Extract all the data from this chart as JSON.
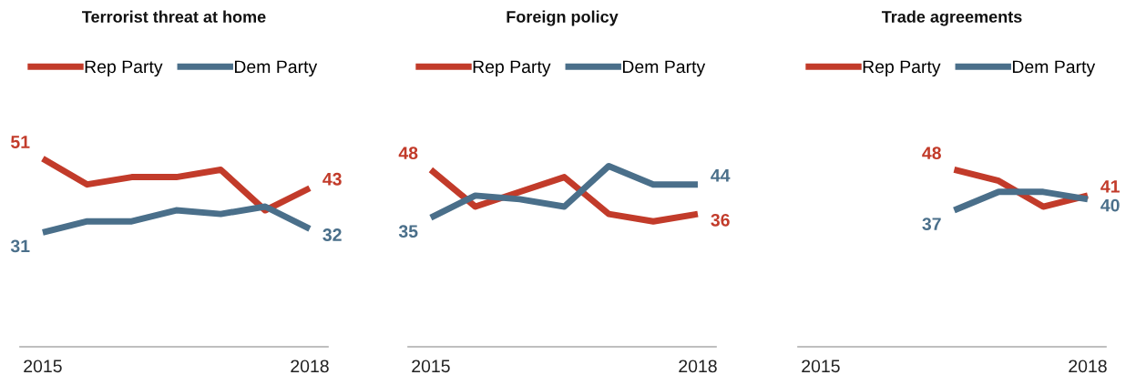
{
  "chart_data": [
    {
      "type": "line",
      "title": "Terrorist threat at home",
      "categories": [
        "2015",
        null,
        null,
        null,
        null,
        null,
        "2018"
      ],
      "legend": "top",
      "grid": false,
      "series": [
        {
          "name": "Rep Party",
          "color": "#c23b2a",
          "values": [
            51,
            44,
            46,
            46,
            48,
            37,
            43
          ],
          "value_labels": [
            "51",
            null,
            null,
            null,
            null,
            null,
            "43"
          ]
        },
        {
          "name": "Dem Party",
          "color": "#4a6f8a",
          "values": [
            31,
            34,
            34,
            37,
            36,
            38,
            32
          ],
          "value_labels": [
            "31",
            null,
            null,
            null,
            null,
            null,
            "32"
          ]
        }
      ]
    },
    {
      "type": "line",
      "title": "Foreign policy",
      "categories": [
        "2015",
        null,
        null,
        null,
        null,
        null,
        "2018"
      ],
      "legend": "top",
      "grid": false,
      "series": [
        {
          "name": "Rep Party",
          "color": "#c23b2a",
          "values": [
            48,
            38,
            42,
            46,
            36,
            34,
            36
          ],
          "value_labels": [
            "48",
            null,
            null,
            null,
            null,
            null,
            "36"
          ]
        },
        {
          "name": "Dem Party",
          "color": "#4a6f8a",
          "values": [
            35,
            41,
            40,
            38,
            49,
            44,
            44
          ],
          "value_labels": [
            "35",
            null,
            null,
            null,
            null,
            null,
            "44"
          ]
        }
      ]
    },
    {
      "type": "line",
      "title": "Trade agreements",
      "categories": [
        "2015",
        null,
        null,
        null,
        null,
        null,
        "2018"
      ],
      "legend": "top",
      "grid": false,
      "series": [
        {
          "name": "Rep Party",
          "color": "#c23b2a",
          "values": [
            null,
            null,
            null,
            48,
            45,
            38,
            41
          ],
          "value_labels": [
            null,
            null,
            null,
            "48",
            null,
            null,
            "41"
          ]
        },
        {
          "name": "Dem Party",
          "color": "#4a6f8a",
          "values": [
            null,
            null,
            null,
            37,
            42,
            42,
            40
          ],
          "value_labels": [
            null,
            null,
            null,
            "37",
            null,
            null,
            "40"
          ]
        }
      ]
    }
  ]
}
